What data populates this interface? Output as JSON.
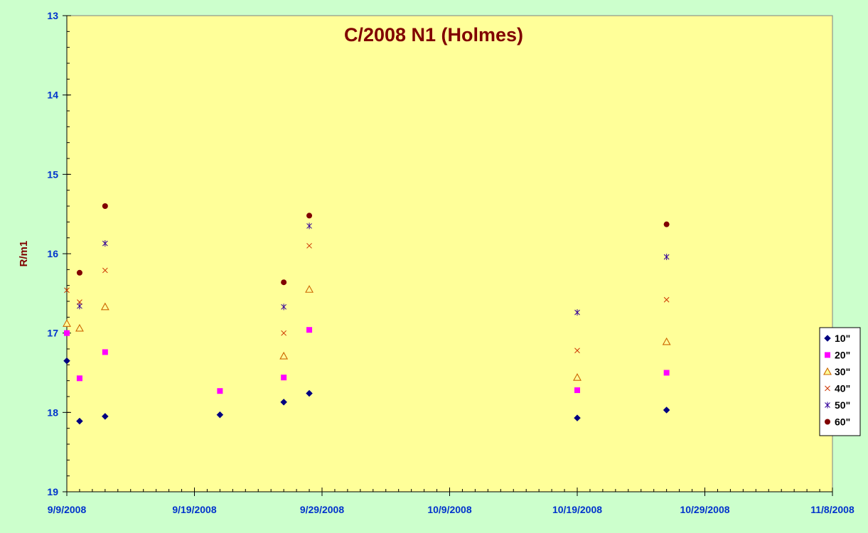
{
  "chart_data": {
    "type": "scatter",
    "title": "C/2008 N1 (Holmes)",
    "xlabel": "",
    "ylabel": "R/m1",
    "x_axis": {
      "min": "2008-09-09",
      "max": "2008-11-08",
      "tick_labels": [
        "9/9/2008",
        "9/19/2008",
        "9/29/2008",
        "10/9/2008",
        "10/19/2008",
        "10/29/2008",
        "11/8/2008"
      ],
      "minor_ticks_per_day": true
    },
    "y_axis": {
      "min": 13,
      "max": 19,
      "inverted": true,
      "tick_labels": [
        "13",
        "14",
        "15",
        "16",
        "17",
        "18",
        "19"
      ],
      "minor_step": 0.2
    },
    "grid": false,
    "legend": "right",
    "colors": {
      "plot_background": "#ffff99",
      "outer_background": "#ccffcc",
      "axis_label_color": "#0033cc",
      "title_color": "#800000"
    },
    "series": [
      {
        "name": "10\"",
        "marker": "diamond",
        "color": "#000080",
        "points": [
          {
            "x": "2008-09-09",
            "y": 17.35
          },
          {
            "x": "2008-09-10",
            "y": 18.11
          },
          {
            "x": "2008-09-12",
            "y": 18.05
          },
          {
            "x": "2008-09-21",
            "y": 18.03
          },
          {
            "x": "2008-09-26",
            "y": 17.87
          },
          {
            "x": "2008-09-28",
            "y": 17.76
          },
          {
            "x": "2008-10-19",
            "y": 18.07
          },
          {
            "x": "2008-10-26",
            "y": 17.97
          }
        ]
      },
      {
        "name": "20\"",
        "marker": "square",
        "color": "#ff00ff",
        "points": [
          {
            "x": "2008-09-09",
            "y": 17.0
          },
          {
            "x": "2008-09-10",
            "y": 17.57
          },
          {
            "x": "2008-09-12",
            "y": 17.24
          },
          {
            "x": "2008-09-21",
            "y": 17.73
          },
          {
            "x": "2008-09-26",
            "y": 17.56
          },
          {
            "x": "2008-09-28",
            "y": 16.96
          },
          {
            "x": "2008-10-19",
            "y": 17.72
          },
          {
            "x": "2008-10-26",
            "y": 17.5
          }
        ]
      },
      {
        "name": "30\"",
        "marker": "triangle",
        "color": "#ff9900",
        "points": [
          {
            "x": "2008-09-09",
            "y": 16.88
          },
          {
            "x": "2008-09-10",
            "y": 16.94
          },
          {
            "x": "2008-09-12",
            "y": 16.67
          },
          {
            "x": "2008-09-26",
            "y": 17.29
          },
          {
            "x": "2008-09-28",
            "y": 16.45
          },
          {
            "x": "2008-10-19",
            "y": 17.56
          },
          {
            "x": "2008-10-26",
            "y": 17.11
          }
        ]
      },
      {
        "name": "40\"",
        "marker": "x",
        "color": "#cc3300",
        "points": [
          {
            "x": "2008-09-09",
            "y": 16.46
          },
          {
            "x": "2008-09-10",
            "y": 16.61
          },
          {
            "x": "2008-09-12",
            "y": 16.21
          },
          {
            "x": "2008-09-26",
            "y": 17.0
          },
          {
            "x": "2008-09-28",
            "y": 15.9
          },
          {
            "x": "2008-10-19",
            "y": 17.22
          },
          {
            "x": "2008-10-26",
            "y": 16.58
          }
        ]
      },
      {
        "name": "50\"",
        "marker": "star",
        "color": "#330099",
        "points": [
          {
            "x": "2008-09-10",
            "y": 16.66
          },
          {
            "x": "2008-09-12",
            "y": 15.87
          },
          {
            "x": "2008-09-26",
            "y": 16.67
          },
          {
            "x": "2008-09-28",
            "y": 15.65
          },
          {
            "x": "2008-10-19",
            "y": 16.74
          },
          {
            "x": "2008-10-26",
            "y": 16.04
          }
        ]
      },
      {
        "name": "60\"",
        "marker": "circle",
        "color": "#800000",
        "points": [
          {
            "x": "2008-09-10",
            "y": 16.24
          },
          {
            "x": "2008-09-12",
            "y": 15.4
          },
          {
            "x": "2008-09-26",
            "y": 16.36
          },
          {
            "x": "2008-09-28",
            "y": 15.52
          },
          {
            "x": "2008-10-26",
            "y": 15.63
          }
        ]
      }
    ]
  }
}
